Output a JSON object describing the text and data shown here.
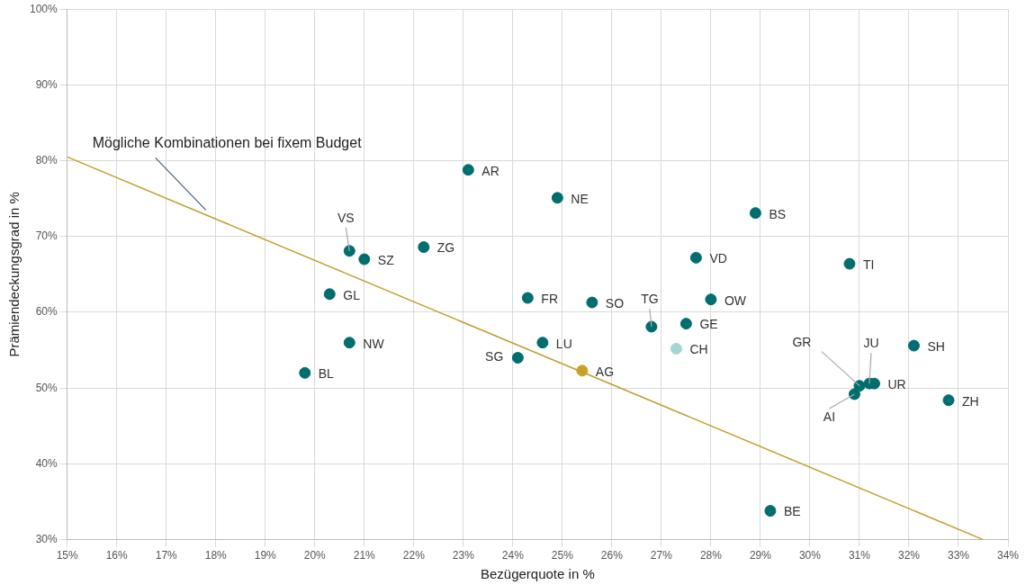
{
  "chart_data": {
    "type": "scatter",
    "xlabel": "Bezügerquote in %",
    "ylabel": "Prämiendeckungsgrad in %",
    "xlim": [
      15,
      34
    ],
    "ylim": [
      30,
      100
    ],
    "xticks": [
      {
        "value": 15,
        "label": "15%"
      },
      {
        "value": 16,
        "label": "16%"
      },
      {
        "value": 17,
        "label": "17%"
      },
      {
        "value": 18,
        "label": "18%"
      },
      {
        "value": 19,
        "label": "19%"
      },
      {
        "value": 20,
        "label": "20%"
      },
      {
        "value": 21,
        "label": "21%"
      },
      {
        "value": 22,
        "label": "22%"
      },
      {
        "value": 23,
        "label": "23%"
      },
      {
        "value": 24,
        "label": "24%"
      },
      {
        "value": 25,
        "label": "25%"
      },
      {
        "value": 26,
        "label": "26%"
      },
      {
        "value": 27,
        "label": "27%"
      },
      {
        "value": 28,
        "label": "28%"
      },
      {
        "value": 29,
        "label": "29%"
      },
      {
        "value": 30,
        "label": "30%"
      },
      {
        "value": 31,
        "label": "31%"
      },
      {
        "value": 32,
        "label": "32%"
      },
      {
        "value": 33,
        "label": "33%"
      },
      {
        "value": 34,
        "label": "34%"
      }
    ],
    "yticks": [
      {
        "value": 30,
        "label": "30%"
      },
      {
        "value": 40,
        "label": "40%"
      },
      {
        "value": 50,
        "label": "50%"
      },
      {
        "value": 60,
        "label": "60%"
      },
      {
        "value": 70,
        "label": "70%"
      },
      {
        "value": 80,
        "label": "80%"
      },
      {
        "value": 90,
        "label": "90%"
      },
      {
        "value": 100,
        "label": "100%"
      }
    ],
    "grid": true,
    "legend": false,
    "series": [
      {
        "marker": "circle",
        "x": [
          23.1,
          24.9,
          28.9,
          20.7,
          21.0,
          22.2,
          27.7,
          30.8,
          20.3,
          24.3,
          25.6,
          28.0,
          26.8,
          27.5,
          27.3,
          20.7,
          24.6,
          32.1,
          24.1,
          25.4,
          19.8,
          31.0,
          31.2,
          31.3,
          30.9,
          32.8,
          29.2
        ],
        "values": [
          78.8,
          75.1,
          73.1,
          68.1,
          67.0,
          68.6,
          67.2,
          66.4,
          62.4,
          61.9,
          61.3,
          61.7,
          58.1,
          58.5,
          55.2,
          56.0,
          56.0,
          55.6,
          54.0,
          52.3,
          52.0,
          50.3,
          50.6,
          50.6,
          49.2,
          48.4,
          33.8
        ],
        "value_labels": [
          "AR",
          "NE",
          "BS",
          "VS",
          "SZ",
          "ZG",
          "VD",
          "TI",
          "GL",
          "FR",
          "SO",
          "OW",
          "TG",
          "GE",
          "CH",
          "NW",
          "LU",
          "SH",
          "SG",
          "AG",
          "BL",
          "GR",
          "JU",
          "UR",
          "AI",
          "ZH",
          "BE"
        ],
        "colors": [
          "#006e6e",
          "#006e6e",
          "#006e6e",
          "#006e6e",
          "#006e6e",
          "#006e6e",
          "#006e6e",
          "#006e6e",
          "#006e6e",
          "#006e6e",
          "#006e6e",
          "#006e6e",
          "#006e6e",
          "#006e6e",
          "#a3d6d3",
          "#006e6e",
          "#006e6e",
          "#006e6e",
          "#006e6e",
          "#c9a227",
          "#006e6e",
          "#006e6e",
          "#006e6e",
          "#006e6e",
          "#006e6e",
          "#006e6e",
          "#006e6e"
        ]
      },
      {
        "type": "line",
        "marker": "none",
        "color": "#c0a030",
        "x": [
          15,
          33.5
        ],
        "values": [
          80.5,
          30
        ]
      }
    ],
    "annotations": [
      {
        "text": "Mögliche Kombinationen bei fixem Budget",
        "x": 17.8,
        "y": 73.5
      }
    ]
  }
}
